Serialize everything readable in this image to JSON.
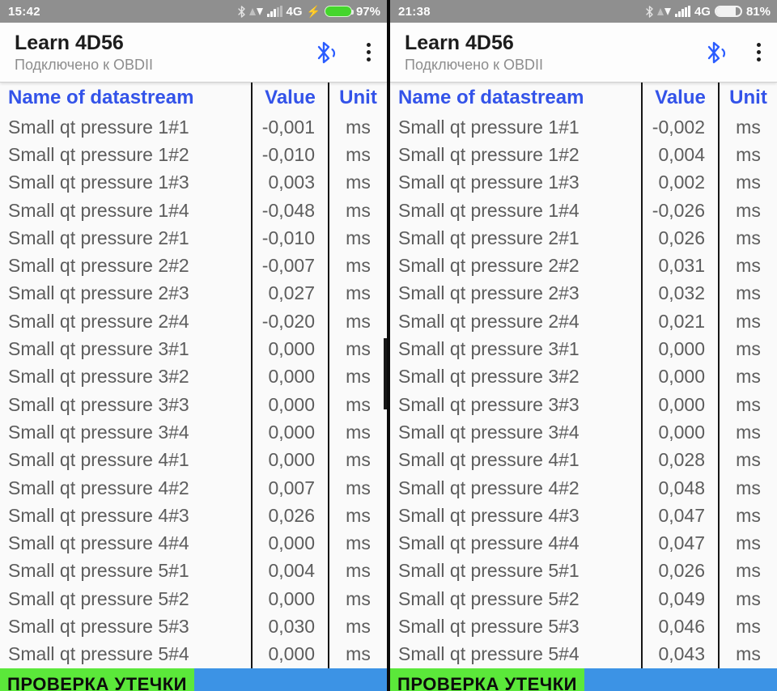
{
  "colors": {
    "accent_blue": "#3353e9",
    "statusbar_gray": "#8f8f8f",
    "battery_green": "#44d62c",
    "button_green": "#5be83a",
    "footer_blue": "#3c93e5"
  },
  "panels": [
    {
      "status_bar": {
        "time": "15:42",
        "network": "4G",
        "charging_glyph": "⚡",
        "battery_percent": "97%"
      },
      "header": {
        "title": "Learn 4D56",
        "subtitle": "Подключено к OBDII"
      },
      "table": {
        "columns": [
          "Name of datastream",
          "Value",
          "Unit"
        ],
        "rows": [
          {
            "name": "Small qt pressure 1#1",
            "value": "-0,001",
            "unit": "ms"
          },
          {
            "name": "Small qt pressure 1#2",
            "value": "-0,010",
            "unit": "ms"
          },
          {
            "name": "Small qt pressure 1#3",
            "value": "0,003",
            "unit": "ms"
          },
          {
            "name": "Small qt pressure 1#4",
            "value": "-0,048",
            "unit": "ms"
          },
          {
            "name": "Small qt pressure 2#1",
            "value": "-0,010",
            "unit": "ms"
          },
          {
            "name": "Small qt pressure 2#2",
            "value": "-0,007",
            "unit": "ms"
          },
          {
            "name": "Small qt pressure 2#3",
            "value": "0,027",
            "unit": "ms"
          },
          {
            "name": "Small qt pressure 2#4",
            "value": "-0,020",
            "unit": "ms"
          },
          {
            "name": "Small qt pressure 3#1",
            "value": "0,000",
            "unit": "ms"
          },
          {
            "name": "Small qt pressure 3#2",
            "value": "0,000",
            "unit": "ms"
          },
          {
            "name": "Small qt pressure 3#3",
            "value": "0,000",
            "unit": "ms"
          },
          {
            "name": "Small qt pressure 3#4",
            "value": "0,000",
            "unit": "ms"
          },
          {
            "name": "Small qt pressure 4#1",
            "value": "0,000",
            "unit": "ms"
          },
          {
            "name": "Small qt pressure 4#2",
            "value": "0,007",
            "unit": "ms"
          },
          {
            "name": "Small qt pressure 4#3",
            "value": "0,026",
            "unit": "ms"
          },
          {
            "name": "Small qt pressure 4#4",
            "value": "0,000",
            "unit": "ms"
          },
          {
            "name": "Small qt pressure 5#1",
            "value": "0,004",
            "unit": "ms"
          },
          {
            "name": "Small qt pressure 5#2",
            "value": "0,000",
            "unit": "ms"
          },
          {
            "name": "Small qt pressure 5#3",
            "value": "0,030",
            "unit": "ms"
          },
          {
            "name": "Small qt pressure 5#4",
            "value": "0,000",
            "unit": "ms"
          }
        ]
      },
      "footer": {
        "leak_button_label": "ПРОВЕРКА УТЕЧКИ"
      }
    },
    {
      "status_bar": {
        "time": "21:38",
        "network": "4G",
        "battery_percent": "81%"
      },
      "header": {
        "title": "Learn 4D56",
        "subtitle": "Подключено к OBDII"
      },
      "table": {
        "columns": [
          "Name of datastream",
          "Value",
          "Unit"
        ],
        "rows": [
          {
            "name": "Small qt pressure 1#1",
            "value": "-0,002",
            "unit": "ms"
          },
          {
            "name": "Small qt pressure 1#2",
            "value": "0,004",
            "unit": "ms"
          },
          {
            "name": "Small qt pressure 1#3",
            "value": "0,002",
            "unit": "ms"
          },
          {
            "name": "Small qt pressure 1#4",
            "value": "-0,026",
            "unit": "ms"
          },
          {
            "name": "Small qt pressure 2#1",
            "value": "0,026",
            "unit": "ms"
          },
          {
            "name": "Small qt pressure 2#2",
            "value": "0,031",
            "unit": "ms"
          },
          {
            "name": "Small qt pressure 2#3",
            "value": "0,032",
            "unit": "ms"
          },
          {
            "name": "Small qt pressure 2#4",
            "value": "0,021",
            "unit": "ms"
          },
          {
            "name": "Small qt pressure 3#1",
            "value": "0,000",
            "unit": "ms"
          },
          {
            "name": "Small qt pressure 3#2",
            "value": "0,000",
            "unit": "ms"
          },
          {
            "name": "Small qt pressure 3#3",
            "value": "0,000",
            "unit": "ms"
          },
          {
            "name": "Small qt pressure 3#4",
            "value": "0,000",
            "unit": "ms"
          },
          {
            "name": "Small qt pressure 4#1",
            "value": "0,028",
            "unit": "ms"
          },
          {
            "name": "Small qt pressure 4#2",
            "value": "0,048",
            "unit": "ms"
          },
          {
            "name": "Small qt pressure 4#3",
            "value": "0,047",
            "unit": "ms"
          },
          {
            "name": "Small qt pressure 4#4",
            "value": "0,047",
            "unit": "ms"
          },
          {
            "name": "Small qt pressure 5#1",
            "value": "0,026",
            "unit": "ms"
          },
          {
            "name": "Small qt pressure 5#2",
            "value": "0,049",
            "unit": "ms"
          },
          {
            "name": "Small qt pressure 5#3",
            "value": "0,046",
            "unit": "ms"
          },
          {
            "name": "Small qt pressure 5#4",
            "value": "0,043",
            "unit": "ms"
          }
        ]
      },
      "footer": {
        "leak_button_label": "ПРОВЕРКА УТЕЧКИ"
      }
    }
  ]
}
